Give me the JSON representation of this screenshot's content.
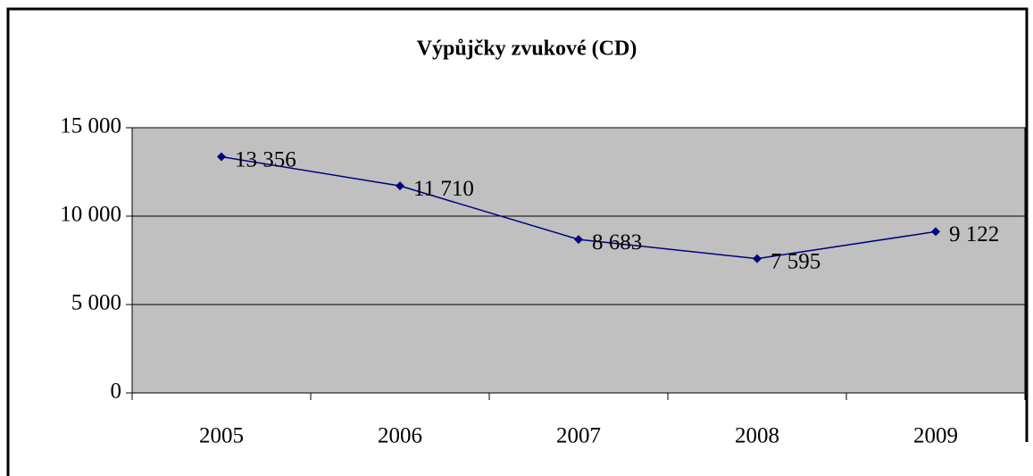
{
  "chart_data": {
    "type": "line",
    "title": "Výpůjčky zvukové (CD)",
    "categories": [
      "2005",
      "2006",
      "2007",
      "2008",
      "2009"
    ],
    "series": [
      {
        "name": "Výpůjčky zvukové (CD)",
        "color": "#000080",
        "values": [
          13356,
          11710,
          8683,
          7595,
          9122
        ],
        "value_labels": [
          "13 356",
          "11 710",
          "8 683",
          "7 595",
          "9 122"
        ]
      }
    ],
    "ylim": [
      0,
      15000
    ],
    "yticks": [
      0,
      {
        "value": 5000,
        "label": "5 000"
      },
      {
        "value": 10000,
        "label": "10 000"
      },
      {
        "value": 15000,
        "label": "15 000"
      }
    ],
    "grid": true,
    "plot_background": "#c0c0c0"
  }
}
